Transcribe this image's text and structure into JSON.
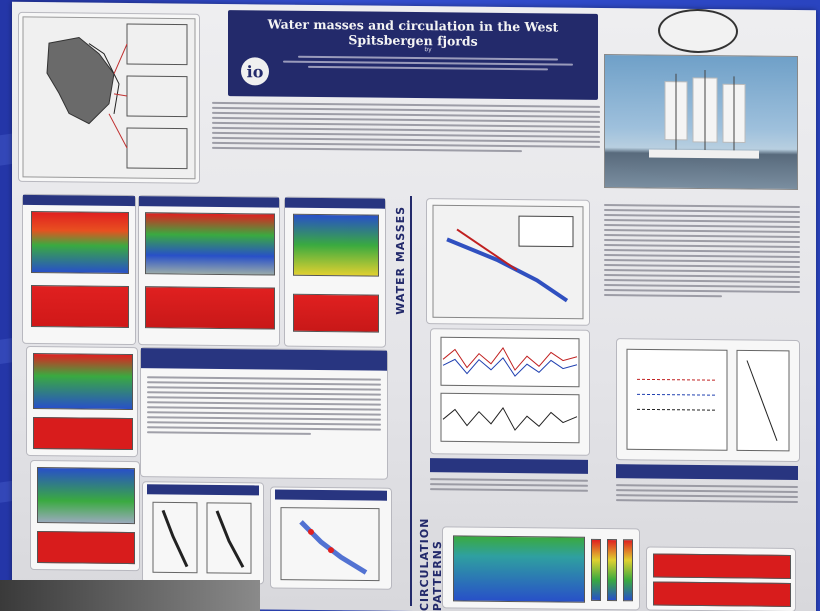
{
  "poster": {
    "title": "Water masses and circulation in the West Spitsbergen fjords",
    "authors_line": "by",
    "side_label_top": "WATER MASSES",
    "side_label_bottom": "CIRCULATION PATTERNS"
  },
  "colors": {
    "slide_background": "#2a44c0",
    "poster_header": "#232a6b",
    "heat_red": "#e02020",
    "heat_green": "#3aaa40",
    "heat_blue": "#2850c8"
  }
}
